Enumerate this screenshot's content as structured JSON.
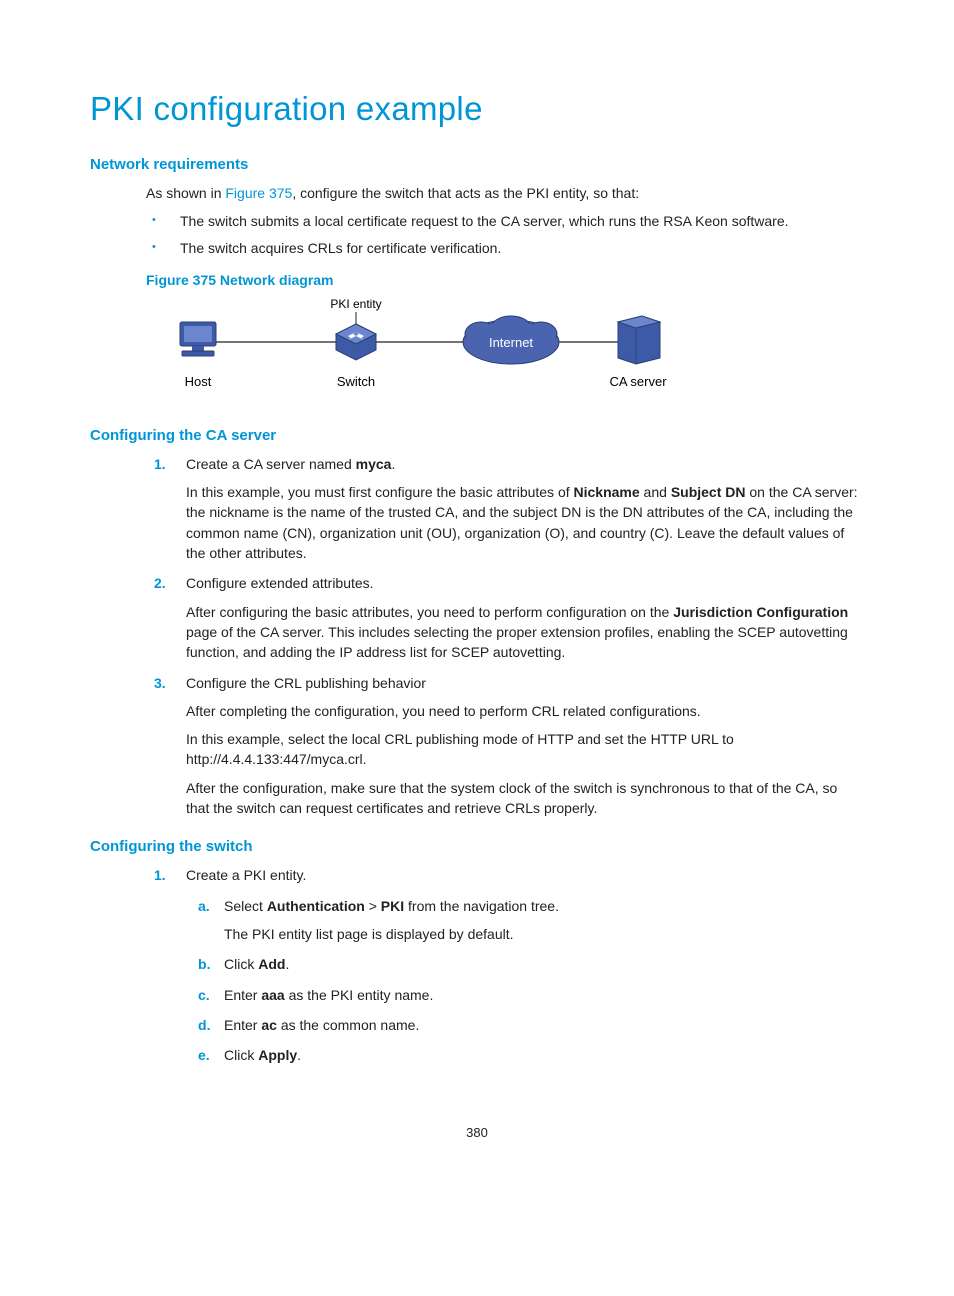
{
  "page_title": "PKI configuration example",
  "page_number": "380",
  "sections": {
    "network_req": {
      "heading": "Network requirements",
      "intro_pre": "As shown in ",
      "intro_link": "Figure 375",
      "intro_post": ", configure the switch that acts as the PKI entity, so that:",
      "bullets": [
        "The switch submits a local certificate request to the CA server, which runs the RSA Keon software.",
        "The switch acquires CRLs for certificate verification."
      ],
      "figure_caption": "Figure 375 Network diagram",
      "diagram": {
        "pki_entity_label": "PKI entity",
        "internet_label": "Internet",
        "host_label": "Host",
        "switch_label": "Switch",
        "ca_label": "CA server",
        "colors": {
          "device_fill": "#3c5aa6",
          "device_stroke": "#2a3f75",
          "cloud_fill": "#4a64b0",
          "cloud_stroke": "#2a3f75",
          "line": "#222222",
          "text": "#000000",
          "cloud_text": "#ffffff"
        }
      }
    },
    "ca_server": {
      "heading": "Configuring the CA server",
      "items": [
        {
          "title_pre": "Create a CA server named ",
          "title_bold": "myca",
          "title_post": ".",
          "paras": [
            {
              "runs": [
                {
                  "t": "In this example, you must first configure the basic attributes of "
                },
                {
                  "t": "Nickname",
                  "b": true
                },
                {
                  "t": " and "
                },
                {
                  "t": "Subject DN",
                  "b": true
                },
                {
                  "t": " on the CA server: the nickname is the name of the trusted CA, and the subject DN is the DN attributes of the CA, including the common name (CN), organization unit (OU), organization (O), and country (C). Leave the default values of the other attributes."
                }
              ]
            }
          ]
        },
        {
          "title_pre": "Configure extended attributes.",
          "title_bold": "",
          "title_post": "",
          "paras": [
            {
              "runs": [
                {
                  "t": "After configuring the basic attributes, you need to perform configuration on the "
                },
                {
                  "t": "Jurisdiction Configuration",
                  "b": true
                },
                {
                  "t": " page of the CA server. This includes selecting the proper extension profiles, enabling the SCEP autovetting function, and adding the IP address list for SCEP autovetting."
                }
              ]
            }
          ]
        },
        {
          "title_pre": "Configure the CRL publishing behavior",
          "title_bold": "",
          "title_post": "",
          "paras": [
            {
              "runs": [
                {
                  "t": "After completing the configuration, you need to perform CRL related configurations."
                }
              ]
            },
            {
              "runs": [
                {
                  "t": "In this example, select the local CRL publishing mode of HTTP and set the HTTP URL to http://4.4.4.133:447/myca.crl."
                }
              ]
            },
            {
              "runs": [
                {
                  "t": "After the configuration, make sure that the system clock of the switch is synchronous to that of the CA, so that the switch can request certificates and retrieve CRLs properly."
                }
              ]
            }
          ]
        }
      ]
    },
    "switch": {
      "heading": "Configuring the switch",
      "step1_title": "Create a PKI entity.",
      "substeps": [
        {
          "runs": [
            {
              "t": "Select "
            },
            {
              "t": "Authentication",
              "b": true
            },
            {
              "t": " > "
            },
            {
              "t": "PKI",
              "b": true
            },
            {
              "t": " from the navigation tree."
            }
          ],
          "after": "The PKI entity list page is displayed by default."
        },
        {
          "runs": [
            {
              "t": "Click "
            },
            {
              "t": "Add",
              "b": true
            },
            {
              "t": "."
            }
          ]
        },
        {
          "runs": [
            {
              "t": "Enter "
            },
            {
              "t": "aaa",
              "b": true
            },
            {
              "t": " as the PKI entity name."
            }
          ]
        },
        {
          "runs": [
            {
              "t": "Enter "
            },
            {
              "t": "ac",
              "b": true
            },
            {
              "t": " as the common name."
            }
          ]
        },
        {
          "runs": [
            {
              "t": "Click "
            },
            {
              "t": "Apply",
              "b": true
            },
            {
              "t": "."
            }
          ]
        }
      ]
    }
  }
}
